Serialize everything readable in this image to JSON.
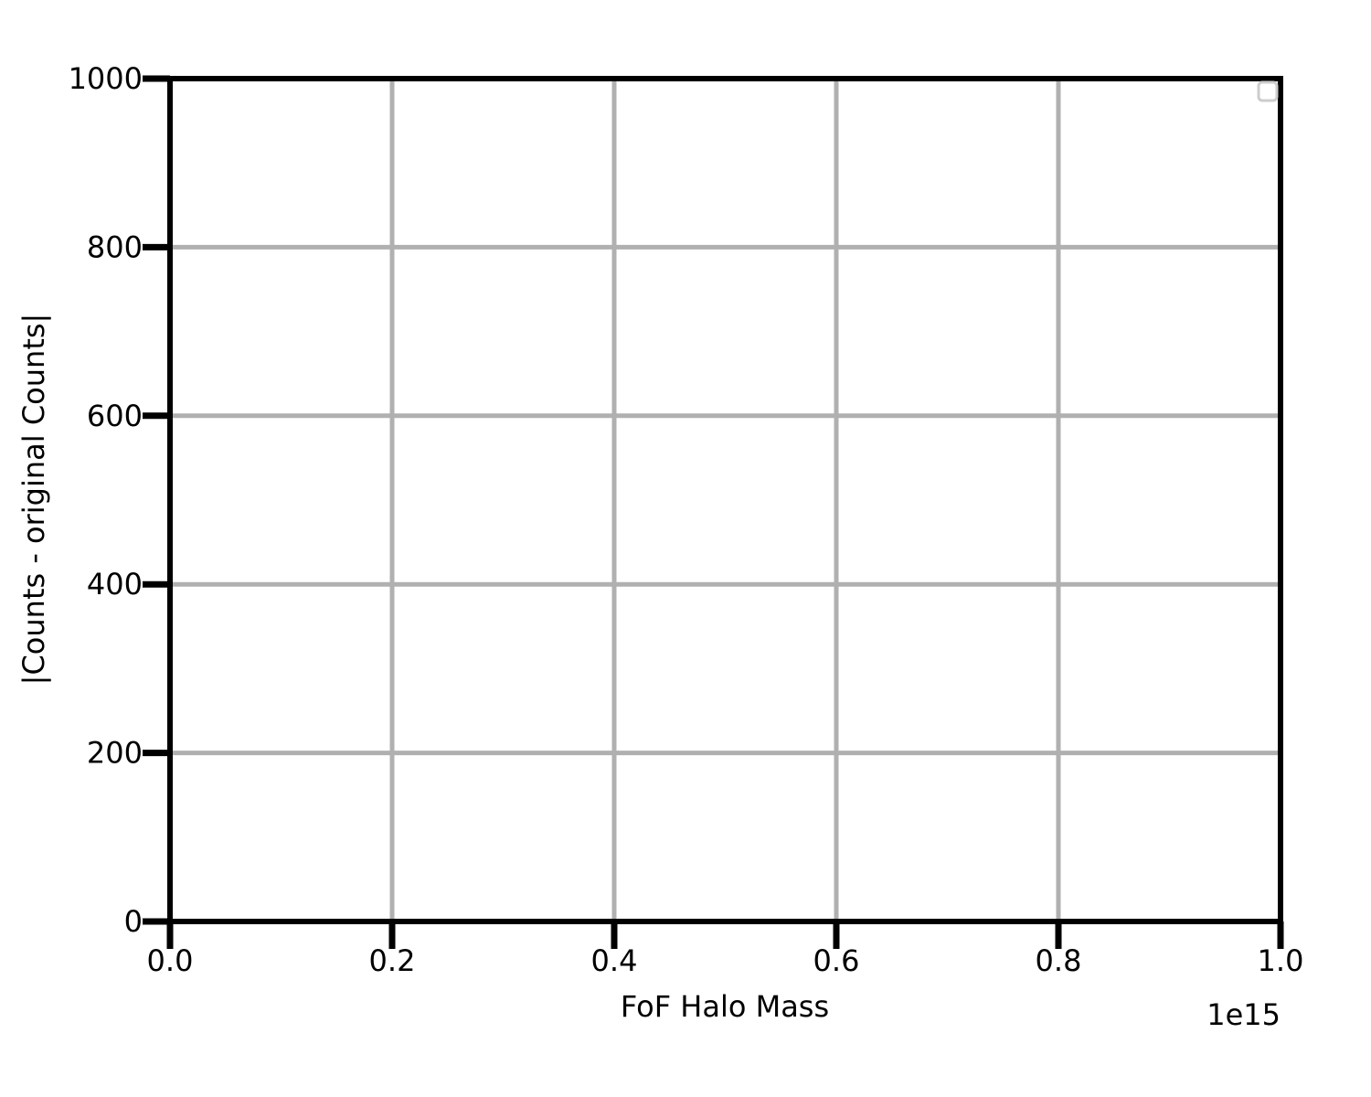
{
  "chart_data": {
    "type": "line",
    "title": "",
    "xlabel": "FoF Halo Mass",
    "ylabel": "|Counts - original Counts|",
    "x_offset_label": "1e15",
    "xlim": [
      0.0,
      1.0
    ],
    "ylim": [
      0,
      1000
    ],
    "x_ticks": [
      0.0,
      0.2,
      0.4,
      0.6,
      0.8,
      1.0
    ],
    "x_tick_labels": [
      "0.0",
      "0.2",
      "0.4",
      "0.6",
      "0.8",
      "1.0"
    ],
    "y_ticks": [
      0,
      200,
      400,
      600,
      800,
      1000
    ],
    "y_tick_labels": [
      "0",
      "200",
      "400",
      "600",
      "800",
      "1000"
    ],
    "grid": true,
    "legend": "top-right",
    "series": [],
    "colors": {
      "grid": "#b0b0b0",
      "axes": "#000000",
      "legend_frame": "#cccccc"
    }
  }
}
